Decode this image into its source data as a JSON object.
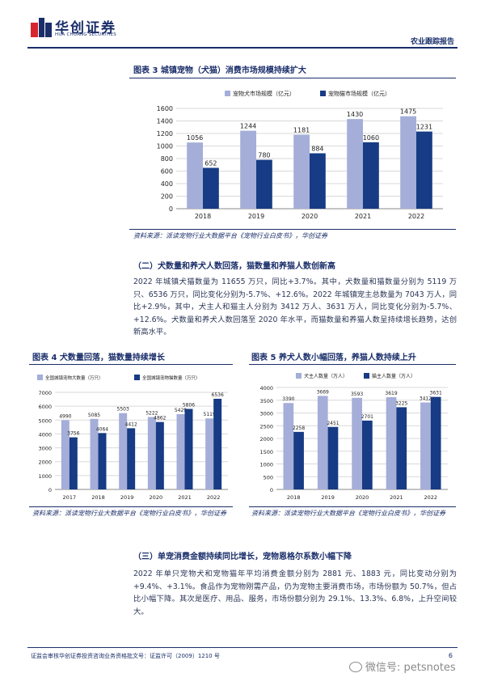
{
  "header": {
    "logo_cn": "华创证券",
    "logo_en": "HUA CHUANG SECURITIES",
    "report_type": "农业跟踪报告"
  },
  "fig3": {
    "title": "图表 3   城镇宠物（犬猫）消费市场规模持续扩大",
    "source": "资料来源：派读宠物行业大数据平台《宠物行业白皮书》，华创证券"
  },
  "section2": {
    "heading": "（二）犬数量和养犬人数回落，猫数量和养猫人数创新高",
    "body": "2022 年城镇犬猫数量为 11655 万只，同比+3.7%。其中，犬数量和猫数量分别为 5119 万只、6536 万只，同比变化分别为-5.7%、+12.6%。2022 年城镇宠主总数量为 7043 万人，同比+2.9%，其中，犬主人和猫主人分别为 3412 万人、3631 万人，同比变化分别为-5.7%、+12.6%。犬数量和养犬人数回落至 2020 年水平，而猫数量和养猫人数呈持续增长趋势，达创新高水平。"
  },
  "fig4": {
    "title": "图表 4   犬数量回落，猫数量持续增长",
    "source": "资料来源：派读宠物行业大数据平台《宠物行业白皮书》，华创证券"
  },
  "fig5": {
    "title": "图表 5   养犬人数小幅回落，养猫人数持续上升",
    "source": "资料来源：派读宠物行业大数据平台《宠物行业白皮书》，华创证券"
  },
  "section3": {
    "heading": "（三）单宠消费金额持续同比增长，宠物恩格尔系数小幅下降",
    "body": "2022 年单只宠物犬和宠物猫年平均消费金额分别为 2881 元、1883 元，同比变动分别为+9.4%、+3.1%。食品作为宠物刚需产品，仍为宠物主要消费市场，市场份额为 50.7%，但占比小幅下降。其次是医疗、用品、服务，市场份额分别为 29.1%、13.3%、6.8%，上升空间较大。"
  },
  "footer": {
    "license": "证监会审核华创证券投资咨询业务资格批文号：证监许可（2009）1210 号",
    "page": "6",
    "watermark": "微信号: petsnotes"
  },
  "colors": {
    "light_bar": "#a4aed8",
    "dark_bar": "#173b84",
    "brand": "#1a2e6a",
    "logo_red": "#d7262e"
  },
  "chart_data": [
    {
      "id": "fig3",
      "type": "bar",
      "categories": [
        "2018",
        "2019",
        "2020",
        "2021",
        "2022"
      ],
      "series": [
        {
          "name": "宠物犬市场规模（亿元）",
          "values": [
            1056,
            1244,
            1181,
            1430,
            1475
          ]
        },
        {
          "name": "宠物猫市场规模（亿元）",
          "values": [
            652,
            780,
            884,
            1060,
            1231
          ]
        }
      ],
      "yticks": [
        0,
        200,
        400,
        600,
        800,
        1000,
        1200,
        1400,
        1600
      ],
      "ylim": [
        0,
        1600
      ],
      "grid": true,
      "legend": "top"
    },
    {
      "id": "fig4",
      "type": "bar",
      "categories": [
        "2017",
        "2018",
        "2019",
        "2020",
        "2021",
        "2022"
      ],
      "series": [
        {
          "name": "全国城镇宠物犬数量（万只）",
          "values": [
            4990,
            5085,
            5503,
            5222,
            5429,
            5119
          ]
        },
        {
          "name": "全国城镇宠物猫数量（万只）",
          "values": [
            3756,
            4064,
            4412,
            4862,
            5806,
            6536
          ]
        }
      ],
      "yticks": [
        0,
        1000,
        2000,
        3000,
        4000,
        5000,
        6000,
        7000
      ],
      "ylim": [
        0,
        7000
      ],
      "grid": true,
      "legend": "top-left"
    },
    {
      "id": "fig5",
      "type": "bar",
      "categories": [
        "2018",
        "2019",
        "2020",
        "2021",
        "2022"
      ],
      "series": [
        {
          "name": "犬主人数量（万人）",
          "values": [
            3390,
            3669,
            3593,
            3619,
            3412
          ]
        },
        {
          "name": "猫主人数量（万人）",
          "values": [
            2258,
            2451,
            2701,
            3225,
            3631
          ]
        }
      ],
      "yticks": [
        0,
        500,
        1000,
        1500,
        2000,
        2500,
        3000,
        3500,
        4000
      ],
      "ylim": [
        0,
        4000
      ],
      "grid": true,
      "legend": "top-left"
    }
  ]
}
